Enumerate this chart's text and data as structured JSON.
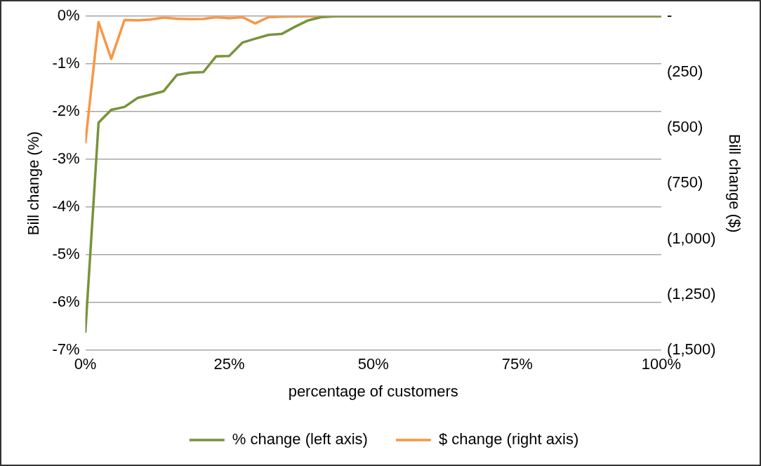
{
  "chart_data": {
    "type": "line",
    "xlabel": "percentage of customers",
    "ylabel": "Bill change (%)",
    "y2label": "Bill change ($)",
    "x": [
      0,
      2.3,
      4.5,
      6.8,
      9.1,
      11.4,
      13.6,
      15.9,
      18.2,
      20.5,
      22.7,
      25,
      27.3,
      29.5,
      31.8,
      34.1,
      36.4,
      38.6,
      40.9,
      43.2,
      100
    ],
    "series": [
      {
        "name": "% change (left axis)",
        "color": "#77933c",
        "values": [
          -6.63,
          -2.23,
          -1.96,
          -1.9,
          -1.71,
          -1.64,
          -1.57,
          -1.23,
          -1.18,
          -1.17,
          -0.84,
          -0.83,
          -0.55,
          -0.47,
          -0.39,
          -0.37,
          -0.22,
          -0.09,
          -0.02,
          0,
          0
        ]
      },
      {
        "name": "$ change (right axis)",
        "color": "#f79646",
        "axis": "y2",
        "values": [
          -571,
          -26,
          -191,
          -17,
          -18,
          -14,
          -6,
          -11,
          -13,
          -12,
          -4,
          -9,
          -4,
          -32,
          -4,
          -2,
          -1,
          0,
          0,
          0,
          0
        ]
      }
    ],
    "xlim": [
      0,
      100
    ],
    "xticks": [
      {
        "value": 0,
        "label": "0%"
      },
      {
        "value": 25,
        "label": "25%"
      },
      {
        "value": 50,
        "label": "50%"
      },
      {
        "value": 75,
        "label": "75%"
      },
      {
        "value": 100,
        "label": "100%"
      }
    ],
    "ylim": [
      -7,
      0
    ],
    "yticks": [
      {
        "value": -7,
        "label": "-7%"
      },
      {
        "value": -6,
        "label": "-6%"
      },
      {
        "value": -5,
        "label": "-5%"
      },
      {
        "value": -4,
        "label": "-4%"
      },
      {
        "value": -3,
        "label": "-3%"
      },
      {
        "value": -2,
        "label": "-2%"
      },
      {
        "value": -1,
        "label": "-1%"
      },
      {
        "value": 0,
        "label": "0%"
      }
    ],
    "y2lim": [
      -1500,
      0
    ],
    "y2ticks": [
      {
        "value": -1500,
        "label": "(1,500)"
      },
      {
        "value": -1250,
        "label": "(1,250)"
      },
      {
        "value": -1000,
        "label": "(1,000)"
      },
      {
        "value": -750,
        "label": "(750)"
      },
      {
        "value": -500,
        "label": "(500)"
      },
      {
        "value": -250,
        "label": "(250)"
      },
      {
        "value": 0,
        "label": "-"
      }
    ],
    "grid": "y",
    "legend": "bottom",
    "marker": "none",
    "line_style": "solid"
  }
}
